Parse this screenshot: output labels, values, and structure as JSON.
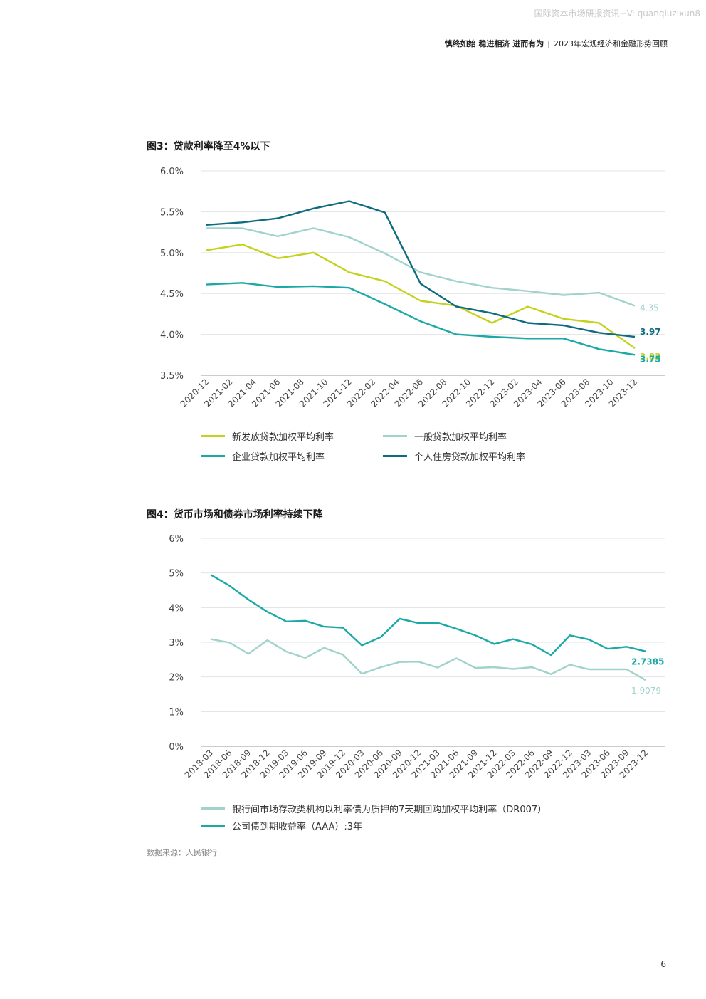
{
  "watermark": "国际资本市场研报资讯+V: quanqiuzixun8",
  "header": {
    "bold_part": "慎终如始 稳进相济 进而有为",
    "separator": "|",
    "subtitle": "2023年宏观经济和金融形势回顾"
  },
  "chart_data": [
    {
      "type": "line",
      "title": "图3：贷款利率降至4%以下",
      "xlabel": "",
      "ylabel": "",
      "ylim": [
        3.5,
        6.0
      ],
      "yticks": [
        "6.0%",
        "5.5%",
        "5.0%",
        "4.5%",
        "4.0%",
        "3.5%"
      ],
      "ytick_values": [
        6.0,
        5.5,
        5.0,
        4.5,
        4.0,
        3.5
      ],
      "x": [
        "2020-12",
        "2021-03",
        "2021-06",
        "2021-09",
        "2021-12",
        "2022-03",
        "2022-06",
        "2022-09",
        "2022-12",
        "2023-03",
        "2023-06",
        "2023-09",
        "2023-12"
      ],
      "xtick_labels": [
        "2020-12",
        "2021-02",
        "2021-04",
        "2021-06",
        "2021-08",
        "2021-10",
        "2021-12",
        "2022-02",
        "2022-04",
        "2022-06",
        "2022-08",
        "2022-10",
        "2022-12",
        "2023-02",
        "2023-04",
        "2023-06",
        "2023-08",
        "2023-10",
        "2023-12"
      ],
      "grid": true,
      "legend_position": "bottom",
      "series": [
        {
          "name": "新发放贷款加权平均利率",
          "color": "#c5d21c",
          "values": [
            5.03,
            5.1,
            4.93,
            5.0,
            4.76,
            4.65,
            4.41,
            4.35,
            4.14,
            4.34,
            4.19,
            4.14,
            3.83
          ],
          "end_label": "3.83"
        },
        {
          "name": "一般贷款加权平均利率",
          "color": "#9fd3cb",
          "values": [
            5.3,
            5.3,
            5.2,
            5.3,
            5.19,
            4.99,
            4.76,
            4.65,
            4.57,
            4.53,
            4.48,
            4.51,
            4.35
          ],
          "end_label": "4.35"
        },
        {
          "name": "企业贷款加权平均利率",
          "color": "#1aa9a6",
          "values": [
            4.61,
            4.63,
            4.58,
            4.59,
            4.57,
            4.37,
            4.16,
            4.0,
            3.97,
            3.95,
            3.95,
            3.82,
            3.75
          ],
          "end_label": "3.75"
        },
        {
          "name": "个人住房贷款加权平均利率",
          "color": "#0f6b80",
          "values": [
            5.34,
            5.37,
            5.42,
            5.54,
            5.63,
            5.49,
            4.62,
            4.34,
            4.26,
            4.14,
            4.11,
            4.02,
            3.97
          ],
          "end_label": "3.97"
        }
      ]
    },
    {
      "type": "line",
      "title": "图4：货币市场和债券市场利率持续下降",
      "xlabel": "",
      "ylabel": "",
      "ylim": [
        0,
        6
      ],
      "yticks": [
        "6%",
        "5%",
        "4%",
        "3%",
        "2%",
        "1%",
        "0%"
      ],
      "ytick_values": [
        6,
        5,
        4,
        3,
        2,
        1,
        0
      ],
      "x": [
        "2018-03",
        "2018-06",
        "2018-09",
        "2018-12",
        "2019-03",
        "2019-06",
        "2019-09",
        "2019-12",
        "2020-03",
        "2020-06",
        "2020-09",
        "2020-12",
        "2021-03",
        "2021-06",
        "2021-09",
        "2021-12",
        "2022-03",
        "2022-06",
        "2022-09",
        "2022-12",
        "2023-03",
        "2023-06",
        "2023-09",
        "2023-12"
      ],
      "xtick_labels": [
        "2018-03",
        "2018-06",
        "2018-09",
        "2018-12",
        "2019-03",
        "2019-06",
        "2019-09",
        "2019-12",
        "2020-03",
        "2020-06",
        "2020-09",
        "2020-12",
        "2021-03",
        "2021-06",
        "2021-09",
        "2021-12",
        "2022-03",
        "2022-06",
        "2022-09",
        "2022-12",
        "2023-03",
        "2023-06",
        "2023-09",
        "2023-12"
      ],
      "grid": true,
      "legend_position": "bottom",
      "series": [
        {
          "name": "银行间市场存款类机构以利率债为质押的7天期回购加权平均利率（DR007）",
          "color": "#9fd3cb",
          "values": [
            3.09,
            2.99,
            2.67,
            3.06,
            2.73,
            2.55,
            2.84,
            2.64,
            2.09,
            2.28,
            2.43,
            2.44,
            2.27,
            2.54,
            2.26,
            2.28,
            2.23,
            2.28,
            2.08,
            2.35,
            2.22,
            2.22,
            2.22,
            1.9079
          ],
          "end_label": "1.9079"
        },
        {
          "name": "公司债到期收益率（AAA）:3年",
          "color": "#1aa9a6",
          "values": [
            4.95,
            4.63,
            4.23,
            3.88,
            3.6,
            3.62,
            3.45,
            3.42,
            2.91,
            3.15,
            3.68,
            3.55,
            3.56,
            3.39,
            3.2,
            2.95,
            3.09,
            2.94,
            2.63,
            3.2,
            3.08,
            2.81,
            2.87,
            2.7385
          ],
          "end_label": "2.7385"
        }
      ]
    }
  ],
  "source": "数据来源：人民银行",
  "page_number": "6"
}
